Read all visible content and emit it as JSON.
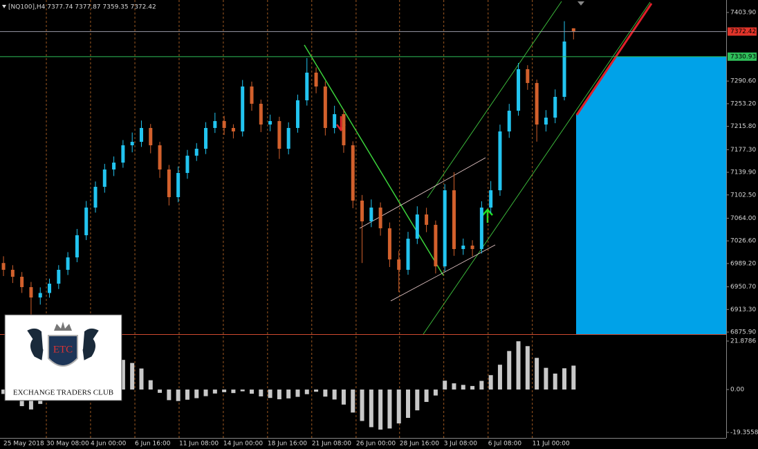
{
  "chart_data": [
    {
      "type": "candlestick",
      "title": "[NQ100],H4  7377.74 7377.87 7359.35 7372.42",
      "open": [
        6990.0,
        6978.8,
        6967.3,
        6950.2,
        6933.1,
        6940.5,
        6955.9,
        6978.8,
        6999.3,
        7035.9,
        7081.6,
        7115.9,
        7144.5,
        7155.9,
        7184.5,
        7190.2,
        7213.1,
        7184.5,
        7144.5,
        7098.8,
        7138.8,
        7167.3,
        7178.8,
        7213.1,
        7224.5,
        7213.1,
        7207.4,
        7281.6,
        7253.1,
        7218.8,
        7224.5,
        7178.8,
        7213.1,
        7258.8,
        7304.5,
        7281.6,
        7213.1,
        7235.9,
        7184.5,
        7093.1,
        7058.8,
        7081.6,
        7047.4,
        6995.9,
        6978.8,
        7030.2,
        7070.2,
        7053.1,
        6984.5,
        7110.2,
        7013.1,
        7018.8,
        7013.1,
        7081.6,
        7110.2,
        7207.4,
        7241.6,
        7310.2,
        7287.4,
        7218.8,
        7230.2,
        7264.5,
        7377.74
      ],
      "high": [
        7001.2,
        6986.4,
        6975.1,
        6958.7,
        6949.8,
        6964.2,
        6986.5,
        7008.0,
        7046.3,
        7092.5,
        7124.7,
        7153.8,
        7166.0,
        7193.1,
        7205.6,
        7225.4,
        7219.7,
        7190.3,
        7152.0,
        7149.5,
        7176.9,
        7188.1,
        7222.7,
        7238.3,
        7233.0,
        7219.2,
        7292.4,
        7289.7,
        7260.0,
        7235.1,
        7231.6,
        7222.4,
        7268.2,
        7328.6,
        7313.2,
        7290.0,
        7249.8,
        7244.3,
        7191.0,
        7102.4,
        7095.0,
        7090.1,
        7057.0,
        7010.2,
        7041.5,
        7083.7,
        7081.3,
        7060.2,
        7120.3,
        7140.0,
        7030.4,
        7027.7,
        7092.0,
        7125.4,
        7218.6,
        7252.9,
        7320.5,
        7316.8,
        7293.0,
        7242.6,
        7276.8,
        7389.5,
        7377.87
      ],
      "low": [
        6968.5,
        6957.0,
        6940.6,
        6905.0,
        6921.3,
        6932.8,
        6947.1,
        6970.2,
        6991.4,
        7028.0,
        7073.3,
        7106.2,
        7133.7,
        7147.4,
        7172.9,
        7181.8,
        7171.2,
        7130.6,
        7085.1,
        7090.4,
        7129.2,
        7158.6,
        7170.0,
        7204.9,
        7201.6,
        7195.8,
        7199.0,
        7241.5,
        7206.3,
        7207.7,
        7162.0,
        7169.5,
        7205.3,
        7250.1,
        7270.4,
        7200.7,
        7204.2,
        7172.1,
        7080.6,
        6990.0,
        7049.3,
        7035.2,
        6983.4,
        6942.0,
        6970.6,
        7021.4,
        7041.0,
        6972.8,
        6976.1,
        7001.9,
        7003.5,
        7001.2,
        7005.8,
        7072.3,
        7101.0,
        7196.8,
        7233.4,
        7276.1,
        7190.5,
        7207.3,
        7221.0,
        7258.7,
        7359.35
      ],
      "close": [
        6978.8,
        6967.3,
        6950.2,
        6933.1,
        6940.5,
        6955.9,
        6978.8,
        6999.3,
        7035.9,
        7081.6,
        7115.9,
        7144.5,
        7155.9,
        7184.5,
        7190.2,
        7213.1,
        7184.5,
        7144.5,
        7098.8,
        7138.8,
        7167.3,
        7178.8,
        7213.1,
        7224.5,
        7213.1,
        7207.4,
        7281.6,
        7253.1,
        7218.8,
        7224.5,
        7178.8,
        7213.1,
        7258.8,
        7304.5,
        7281.6,
        7213.1,
        7235.9,
        7184.5,
        7093.1,
        7058.8,
        7081.6,
        7047.4,
        6995.9,
        6978.8,
        7030.2,
        7070.2,
        7053.1,
        6984.5,
        7110.2,
        7013.1,
        7018.8,
        7013.1,
        7081.6,
        7110.2,
        7207.4,
        7241.6,
        7310.2,
        7287.4,
        7218.8,
        7230.2,
        7264.5,
        7355.9,
        7372.42
      ],
      "up_color": "#22c4f0",
      "down_color": "#d2602c",
      "xlim": [
        -0.38,
        78.6
      ],
      "xticks": [
        {
          "value": 0,
          "label": "25 May 2018"
        },
        {
          "value": 4.66,
          "label": "30 May 08:00"
        },
        {
          "value": 9.47,
          "label": "4 Jun 00:00"
        },
        {
          "value": 14.29,
          "label": "6 Jun 16:00"
        },
        {
          "value": 19.1,
          "label": "11 Jun 08:00"
        },
        {
          "value": 23.91,
          "label": "14 Jun 00:00"
        },
        {
          "value": 28.72,
          "label": "18 Jun 16:00"
        },
        {
          "value": 33.53,
          "label": "21 Jun 08:00"
        },
        {
          "value": 38.35,
          "label": "26 Jun 00:00"
        },
        {
          "value": 43.08,
          "label": "28 Jun 16:00"
        },
        {
          "value": 47.89,
          "label": "3 Jul 08:00"
        },
        {
          "value": 52.71,
          "label": "6 Jul 08:00"
        },
        {
          "value": 57.52,
          "label": "11 Jul 00:00"
        }
      ],
      "ylim": [
        6872.5,
        7424.5
      ],
      "yticks": [
        {
          "value": 6875.9,
          "label": "6875.90"
        },
        {
          "value": 6913.3,
          "label": "6913.30"
        },
        {
          "value": 6950.7,
          "label": "6950.70"
        },
        {
          "value": 6989.2,
          "label": "6989.20"
        },
        {
          "value": 7026.6,
          "label": "7026.60"
        },
        {
          "value": 7064,
          "label": "7064.00"
        },
        {
          "value": 7102.5,
          "label": "7102.50"
        },
        {
          "value": 7139.9,
          "label": "7139.90"
        },
        {
          "value": 7177.3,
          "label": "7177.30"
        },
        {
          "value": 7215.8,
          "label": "7215.80"
        },
        {
          "value": 7253.2,
          "label": "7253.20"
        },
        {
          "value": 7290.6,
          "label": "7290.60"
        },
        {
          "value": 7403.9,
          "label": "7403.90"
        }
      ],
      "levels": [
        7372.42,
        7330.93
      ],
      "level_colors": [
        "#e0342a",
        "#2fbf5a"
      ],
      "logo": {
        "initials": "ETC",
        "name": "EXCHANGE TRADERS CLUB"
      }
    },
    {
      "type": "histogram",
      "values": [
        -2.0,
        -5.0,
        -7.5,
        -9.0,
        -6.5,
        -3.0,
        1.5,
        5.0,
        9.0,
        12.5,
        14.8,
        15.6,
        15.0,
        13.4,
        12.0,
        9.5,
        4.2,
        -1.5,
        -4.8,
        -5.2,
        -4.6,
        -3.9,
        -3.0,
        -1.8,
        -1.2,
        -1.6,
        -0.8,
        -1.9,
        -3.1,
        -3.8,
        -4.4,
        -4.0,
        -3.3,
        -2.1,
        -1.0,
        -3.2,
        -4.5,
        -6.8,
        -10.4,
        -14.2,
        -17.0,
        -18.1,
        -17.6,
        -15.3,
        -12.8,
        -9.4,
        -5.6,
        -2.7,
        4.0,
        2.8,
        2.1,
        1.6,
        3.9,
        6.5,
        11.2,
        17.4,
        21.8,
        19.6,
        14.3,
        9.8,
        7.2,
        9.6,
        10.8
      ],
      "color": "#c8c8c8",
      "ylim": [
        -21.86,
        24.07
      ],
      "yticks": [
        21.8786,
        {
          "value": 0,
          "label": "0.00"
        },
        -19.3558
      ]
    }
  ]
}
